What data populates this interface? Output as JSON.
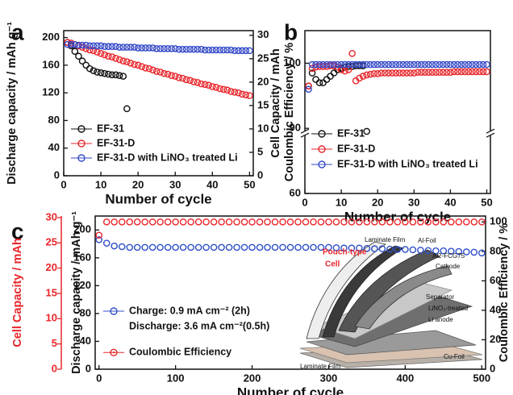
{
  "chart_data": [
    {
      "type": "line",
      "panel_label": "a",
      "x": [
        1,
        2,
        3,
        4,
        5,
        6,
        7,
        8,
        9,
        10,
        11,
        12,
        13,
        14,
        15,
        16,
        17,
        18,
        19,
        20,
        21,
        22,
        23,
        24,
        25,
        26,
        27,
        28,
        29,
        30,
        31,
        32,
        33,
        34,
        35,
        36,
        37,
        38,
        39,
        40,
        41,
        42,
        43,
        44,
        45,
        46,
        47,
        48,
        49,
        50
      ],
      "xlim": [
        0,
        51
      ],
      "xticks": [
        0,
        10,
        20,
        30,
        40,
        50
      ],
      "xlabel": "Number of cycle",
      "ylabel": "Discharge capacity / mAh g⁻¹",
      "ylim": [
        0,
        210
      ],
      "yticks": [
        0,
        40,
        80,
        120,
        160,
        200
      ],
      "y2label": "Cell Capacity / mAh",
      "y2lim": [
        0,
        31
      ],
      "y2ticks": [
        0,
        5,
        10,
        15,
        20,
        25,
        30
      ],
      "legend": "lower left",
      "series": [
        {
          "name": "EF-31",
          "color": "#111111",
          "values": [
            193,
            188,
            180,
            173,
            166,
            160,
            155,
            152,
            150,
            149,
            148,
            147,
            146,
            146,
            145,
            144,
            97,
            null,
            null,
            null,
            null,
            null,
            null,
            null,
            null,
            null,
            null,
            null,
            null,
            null,
            null,
            null,
            null,
            null,
            null,
            null,
            null,
            null,
            null,
            null,
            null,
            null,
            null,
            null,
            null,
            null,
            null,
            null,
            null,
            null
          ]
        },
        {
          "name": "EF-31-D",
          "color": "#e8262b",
          "values": [
            193,
            192,
            190,
            188,
            186,
            184,
            182,
            181,
            179,
            177,
            175,
            173,
            172,
            170,
            168,
            166,
            165,
            163,
            161,
            160,
            158,
            156,
            155,
            153,
            151,
            150,
            148,
            147,
            145,
            144,
            142,
            141,
            139,
            138,
            136,
            135,
            133,
            132,
            131,
            129,
            128,
            126,
            125,
            124,
            122,
            121,
            120,
            118,
            117,
            116
          ]
        },
        {
          "name": "EF-31-D with LiNO₃ treated Li",
          "color": "#3348c8",
          "values": [
            190,
            190,
            190,
            189,
            189,
            189,
            188,
            188,
            188,
            188,
            187,
            187,
            187,
            187,
            186,
            186,
            186,
            186,
            186,
            185,
            185,
            185,
            185,
            185,
            184,
            184,
            184,
            184,
            184,
            184,
            183,
            183,
            183,
            183,
            183,
            183,
            183,
            182,
            182,
            182,
            182,
            182,
            182,
            182,
            182,
            181,
            181,
            181,
            181,
            181
          ]
        }
      ]
    },
    {
      "type": "line",
      "panel_label": "b",
      "x": [
        1,
        2,
        3,
        4,
        5,
        6,
        7,
        8,
        9,
        10,
        11,
        12,
        13,
        14,
        15,
        16,
        17,
        18,
        19,
        20,
        21,
        22,
        23,
        24,
        25,
        26,
        27,
        28,
        29,
        30,
        31,
        32,
        33,
        34,
        35,
        36,
        37,
        38,
        39,
        40,
        41,
        42,
        43,
        44,
        45,
        46,
        47,
        48,
        49,
        50
      ],
      "xlim": [
        0,
        51
      ],
      "xticks": [
        0,
        10,
        20,
        30,
        40,
        50
      ],
      "xlabel": "Number of cycle",
      "ylabel": "Coulombic Efficiency / %",
      "ylim": [
        60,
        105
      ],
      "yticks": [
        60,
        90,
        100
      ],
      "axis_break": true,
      "legend": "lower left",
      "series": [
        {
          "name": "EF-31",
          "color": "#111111",
          "values": [
            96.5,
            98.5,
            97.5,
            97,
            97,
            97.5,
            98,
            98.5,
            99,
            99.2,
            99.4,
            99.5,
            99.5,
            99.6,
            99.6,
            99.6,
            88.6,
            null,
            null,
            null,
            null,
            null,
            null,
            null,
            null,
            null,
            null,
            null,
            null,
            null,
            null,
            null,
            null,
            null,
            null,
            null,
            null,
            null,
            null,
            null,
            null,
            null,
            null,
            null,
            null,
            null,
            null,
            null,
            null,
            null
          ]
        },
        {
          "name": "EF-31-D",
          "color": "#e8262b",
          "values": [
            96.5,
            99.2,
            99.4,
            99.5,
            99.5,
            99.5,
            99.6,
            99.6,
            99.4,
            99.0,
            98.8,
            99.0,
            101.5,
            97.3,
            97.7,
            98.0,
            98.2,
            98.3,
            98.4,
            98.4,
            98.5,
            98.5,
            98.5,
            98.5,
            98.5,
            98.5,
            98.5,
            98.5,
            98.5,
            98.5,
            98.6,
            98.6,
            98.6,
            98.6,
            98.6,
            98.6,
            98.6,
            98.6,
            98.6,
            98.6,
            98.7,
            98.7,
            98.7,
            98.7,
            98.7,
            98.7,
            98.7,
            98.7,
            98.7,
            98.7
          ]
        },
        {
          "name": "EF-31-D with LiNO₃ treated Li",
          "color": "#3348c8",
          "values": [
            96,
            99.8,
            99.8,
            99.8,
            99.8,
            99.8,
            99.8,
            99.8,
            99.8,
            99.8,
            99.8,
            99.8,
            99.8,
            99.8,
            99.8,
            99.8,
            99.8,
            99.8,
            99.8,
            99.8,
            99.8,
            99.8,
            99.8,
            99.8,
            99.8,
            99.8,
            99.8,
            99.8,
            99.8,
            99.8,
            99.8,
            99.8,
            99.8,
            99.8,
            99.8,
            99.8,
            99.8,
            99.8,
            99.8,
            99.8,
            99.8,
            99.8,
            99.8,
            99.8,
            99.8,
            99.8,
            99.8,
            99.8,
            99.8,
            99.8
          ]
        }
      ]
    },
    {
      "type": "line",
      "panel_label": "c",
      "x": [
        0,
        10,
        20,
        30,
        40,
        50,
        60,
        70,
        80,
        90,
        100,
        110,
        120,
        130,
        140,
        150,
        160,
        170,
        180,
        190,
        200,
        210,
        220,
        230,
        240,
        250,
        260,
        270,
        280,
        290,
        300,
        310,
        320,
        330,
        340,
        350,
        360,
        370,
        380,
        390,
        400,
        410,
        420,
        430,
        440,
        450,
        460,
        470,
        480,
        490,
        500
      ],
      "xlim": [
        -5,
        505
      ],
      "xticks": [
        0,
        100,
        200,
        300,
        400,
        500
      ],
      "xlabel": "Number of cycle",
      "ylabel": "Discharge capacity / mAh g⁻¹",
      "ylim": [
        0,
        220
      ],
      "yticks": [
        0,
        40,
        80,
        120,
        160,
        200
      ],
      "y2label": "Coulombic Efficiency / %",
      "y2lim": [
        0,
        104
      ],
      "y2ticks": [
        0,
        20,
        40,
        60,
        80,
        100
      ],
      "y3label": "Cell Capacity / mAh",
      "y3lim": [
        0,
        30.3
      ],
      "y3ticks": [
        0,
        5,
        10,
        15,
        20,
        25,
        30
      ],
      "y3color": "#e8262b",
      "legend": "lower left",
      "series": [
        {
          "name": "Charge: 0.9 mA cm⁻² (2h)",
          "legend_note": "Discharge: 3.6 mA cm⁻²(0.5h)",
          "color": "#2f4fc9",
          "values": [
            186,
            181,
            177,
            176,
            175,
            175,
            175,
            175,
            175,
            175,
            175,
            175,
            175,
            175,
            175,
            175,
            175,
            175,
            175,
            175,
            175,
            175,
            175,
            175,
            175,
            175,
            175,
            175,
            175,
            175,
            175,
            174.5,
            174,
            174,
            174,
            173.5,
            173,
            173,
            172.5,
            172,
            172,
            171.5,
            171,
            170.5,
            170,
            170,
            169.5,
            169,
            168.5,
            168,
            167
          ]
        },
        {
          "name": "Coulombic Efficiency",
          "color": "#e8262b",
          "axis": "y2",
          "values": [
            91,
            100,
            100,
            100,
            100,
            100,
            100,
            100,
            100,
            100,
            100,
            100,
            100,
            100,
            100,
            100,
            100,
            100,
            100,
            100,
            100,
            100,
            100,
            100,
            100,
            100,
            100,
            100,
            100,
            100,
            100,
            100,
            100,
            100,
            100,
            100,
            100,
            100,
            100,
            100,
            100,
            100,
            100,
            100,
            100,
            100,
            100,
            100,
            100,
            100,
            100
          ]
        }
      ],
      "inset_labels": [
        "Pouch-type",
        "Cell",
        "Laminate Film",
        "Al-Foil",
        "Al2-FCG75",
        "Cathode",
        "Separator",
        "LiNO₃-treated",
        "Li anode",
        "Cu-Foil",
        "Laminate Film"
      ]
    }
  ]
}
